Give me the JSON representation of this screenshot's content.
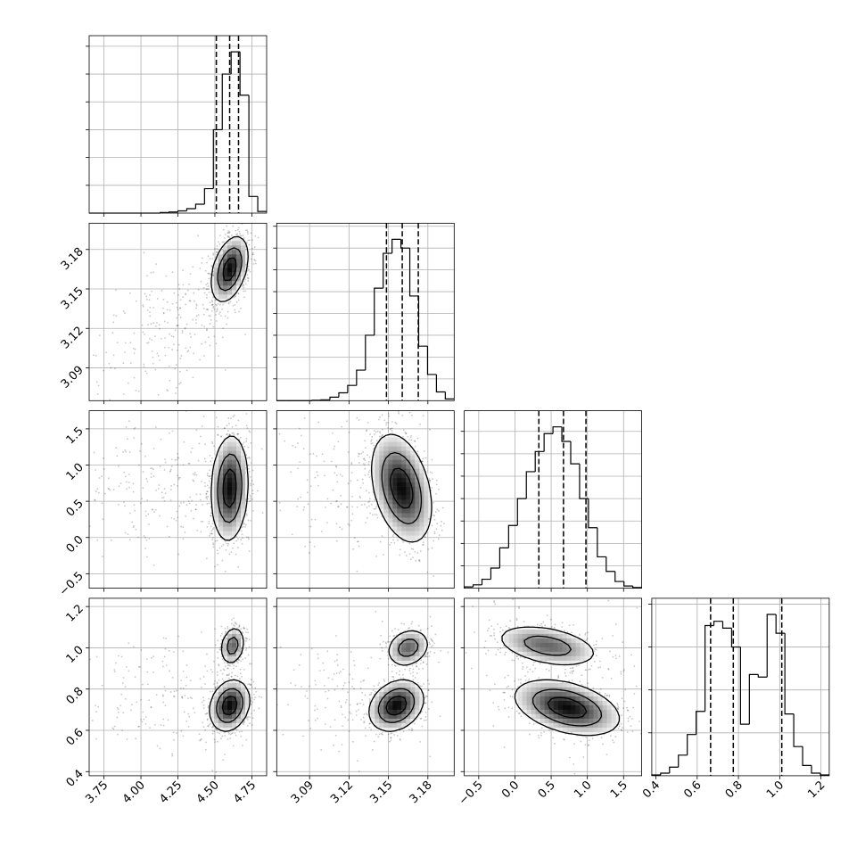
{
  "chart_data": {
    "type": "corner",
    "grid": true,
    "variables": [
      {
        "id": "p0",
        "range": [
          3.65,
          4.85
        ],
        "ticks": [
          3.75,
          4.0,
          4.25,
          4.5,
          4.75
        ],
        "tick_labels": [
          "3.75",
          "4.00",
          "4.25",
          "4.50",
          "4.75"
        ],
        "quantiles": [
          4.51,
          4.6,
          4.66
        ],
        "histogram": {
          "edges": [
            3.65,
            3.71,
            3.77,
            3.83,
            3.89,
            3.95,
            4.01,
            4.07,
            4.13,
            4.19,
            4.25,
            4.31,
            4.37,
            4.43,
            4.49,
            4.55,
            4.61,
            4.67,
            4.73,
            4.79,
            4.85
          ],
          "counts": [
            0,
            0,
            0,
            0,
            0,
            0,
            0,
            0,
            1,
            2,
            4,
            8,
            16,
            44,
            150,
            250,
            290,
            212,
            30,
            3
          ]
        }
      },
      {
        "id": "p1",
        "range": [
          3.065,
          3.2
        ],
        "ticks": [
          3.09,
          3.12,
          3.15,
          3.18
        ],
        "tick_labels": [
          "3.09",
          "3.12",
          "3.15",
          "3.18"
        ],
        "quantiles": [
          3.1485,
          3.1605,
          3.1727
        ],
        "histogram": {
          "edges": [
            3.065,
            3.07175,
            3.0785,
            3.08525,
            3.092,
            3.09875,
            3.1055,
            3.11225,
            3.119,
            3.12575,
            3.1325,
            3.13925,
            3.146,
            3.15275,
            3.1595,
            3.16625,
            3.173,
            3.17975,
            3.1865,
            3.19325,
            3.2
          ],
          "counts": [
            0,
            0,
            0,
            0,
            1,
            2,
            8,
            18,
            35,
            70,
            150,
            258,
            338,
            370,
            350,
            240,
            125,
            60,
            20,
            4
          ]
        }
      },
      {
        "id": "p2",
        "range": [
          -0.7,
          1.75
        ],
        "ticks": [
          -0.5,
          0.0,
          0.5,
          1.0,
          1.5
        ],
        "tick_labels": [
          "−0.5",
          "0.0",
          "0.5",
          "1.0",
          "1.5"
        ],
        "quantiles": [
          0.33,
          0.67,
          0.98
        ],
        "histogram": {
          "edges": [
            -0.7,
            -0.5775,
            -0.455,
            -0.3325,
            -0.21,
            -0.0875,
            0.035,
            0.1575,
            0.28,
            0.4025,
            0.525,
            0.6475,
            0.77,
            0.8925,
            1.015,
            1.1375,
            1.26,
            1.3825,
            1.505,
            1.6275,
            1.75
          ],
          "counts": [
            6,
            15,
            40,
            90,
            180,
            280,
            400,
            520,
            610,
            690,
            720,
            655,
            555,
            400,
            270,
            140,
            75,
            30,
            10,
            3
          ]
        }
      },
      {
        "id": "p3",
        "range": [
          0.38,
          1.24
        ],
        "ticks": [
          0.4,
          0.6,
          0.8,
          1.0,
          1.2
        ],
        "tick_labels": [
          "0.4",
          "0.6",
          "0.8",
          "1.0",
          "1.2"
        ],
        "quantiles": [
          0.665,
          0.775,
          1.01
        ],
        "histogram": {
          "edges": [
            0.38,
            0.423,
            0.466,
            0.509,
            0.552,
            0.595,
            0.638,
            0.681,
            0.724,
            0.767,
            0.81,
            0.853,
            0.896,
            0.939,
            0.982,
            1.025,
            1.068,
            1.111,
            1.154,
            1.197,
            1.24
          ],
          "counts": [
            1,
            3,
            10,
            24,
            48,
            75,
            175,
            180,
            172,
            150,
            60,
            118,
            115,
            188,
            166,
            72,
            34,
            12,
            3,
            1
          ]
        }
      }
    ],
    "pairs": [
      {
        "x": "p0",
        "y": "p1",
        "peaks": [
          {
            "x": 4.6,
            "y": 3.165,
            "sx": 0.06,
            "sy": 0.012,
            "rho": 0.4,
            "w": 1
          }
        ],
        "tails": [
          {
            "x": 4.2,
            "y": 3.12,
            "sx": 0.3,
            "sy": 0.03,
            "rho": 0.5,
            "n": 260
          }
        ]
      },
      {
        "x": "p0",
        "y": "p2",
        "peaks": [
          {
            "x": 4.6,
            "y": 0.68,
            "sx": 0.06,
            "sy": 0.35,
            "rho": 0.1,
            "w": 1
          }
        ],
        "tails": [
          {
            "x": 4.2,
            "y": 0.7,
            "sx": 0.35,
            "sy": 0.45,
            "rho": 0.0,
            "n": 260
          }
        ]
      },
      {
        "x": "p0",
        "y": "p3",
        "peaks": [
          {
            "x": 4.6,
            "y": 0.72,
            "sx": 0.065,
            "sy": 0.06,
            "rho": 0.2,
            "w": 0.62
          },
          {
            "x": 4.62,
            "y": 1.01,
            "sx": 0.04,
            "sy": 0.045,
            "rho": 0.2,
            "w": 0.38
          }
        ],
        "tails": [
          {
            "x": 4.2,
            "y": 0.75,
            "sx": 0.35,
            "sy": 0.15,
            "rho": 0.0,
            "n": 220
          }
        ]
      },
      {
        "x": "p1",
        "y": "p2",
        "peaks": [
          {
            "x": 3.16,
            "y": 0.68,
            "sx": 0.011,
            "sy": 0.36,
            "rho": -0.35,
            "w": 1
          }
        ],
        "tails": [
          {
            "x": 3.12,
            "y": 0.85,
            "sx": 0.035,
            "sy": 0.5,
            "rho": 0.0,
            "n": 200
          }
        ]
      },
      {
        "x": "p1",
        "y": "p3",
        "peaks": [
          {
            "x": 3.156,
            "y": 0.72,
            "sx": 0.01,
            "sy": 0.06,
            "rho": 0.25,
            "w": 0.62
          },
          {
            "x": 3.165,
            "y": 1.0,
            "sx": 0.008,
            "sy": 0.045,
            "rho": 0.2,
            "w": 0.38
          }
        ],
        "tails": [
          {
            "x": 3.12,
            "y": 0.75,
            "sx": 0.03,
            "sy": 0.15,
            "rho": 0.0,
            "n": 150
          }
        ]
      },
      {
        "x": "p2",
        "y": "p3",
        "peaks": [
          {
            "x": 0.72,
            "y": 0.71,
            "sx": 0.35,
            "sy": 0.065,
            "rho": -0.4,
            "w": 0.62
          },
          {
            "x": 0.45,
            "y": 1.01,
            "sx": 0.35,
            "sy": 0.05,
            "rho": -0.4,
            "w": 0.38
          }
        ],
        "tails": [
          {
            "x": 0.6,
            "y": 0.85,
            "sx": 0.6,
            "sy": 0.2,
            "rho": -0.3,
            "n": 150
          }
        ]
      }
    ]
  }
}
